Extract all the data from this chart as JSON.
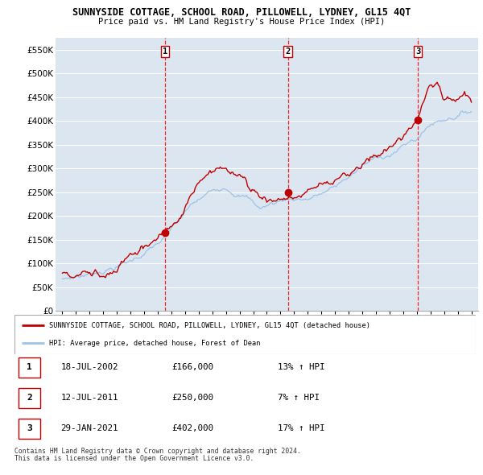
{
  "title": "SUNNYSIDE COTTAGE, SCHOOL ROAD, PILLOWELL, LYDNEY, GL15 4QT",
  "subtitle": "Price paid vs. HM Land Registry's House Price Index (HPI)",
  "legend_property": "SUNNYSIDE COTTAGE, SCHOOL ROAD, PILLOWELL, LYDNEY, GL15 4QT (detached house)",
  "legend_hpi": "HPI: Average price, detached house, Forest of Dean",
  "sales": [
    {
      "num": 1,
      "date": "18-JUL-2002",
      "price": 166000,
      "pct": "13%",
      "dir": "↑"
    },
    {
      "num": 2,
      "date": "12-JUL-2011",
      "price": 250000,
      "pct": "7%",
      "dir": "↑"
    },
    {
      "num": 3,
      "date": "29-JAN-2021",
      "price": 402000,
      "pct": "17%",
      "dir": "↑"
    }
  ],
  "footer1": "Contains HM Land Registry data © Crown copyright and database right 2024.",
  "footer2": "This data is licensed under the Open Government Licence v3.0.",
  "ylim": [
    0,
    575000
  ],
  "yticks": [
    0,
    50000,
    100000,
    150000,
    200000,
    250000,
    300000,
    350000,
    400000,
    450000,
    500000,
    550000
  ],
  "background_color": "#ffffff",
  "plot_bg_color": "#dce6f1",
  "grid_color": "#ffffff",
  "red_line_color": "#c00000",
  "blue_line_color": "#9dc3e6",
  "sale_marker_color": "#c00000",
  "vline_color": "#ff0000",
  "sale1_year": 2002.54,
  "sale2_year": 2011.54,
  "sale3_year": 2021.08
}
